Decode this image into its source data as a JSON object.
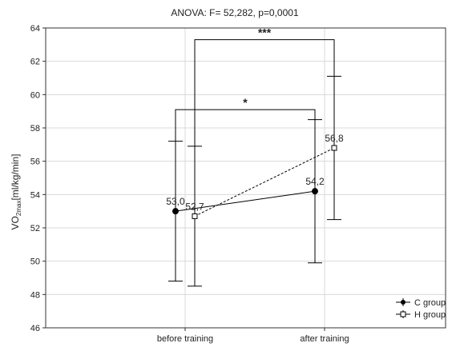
{
  "chart_data": {
    "type": "line",
    "title": "ANOVA: F= 52,282, p=0,0001",
    "ylabel_main": "VO",
    "ylabel_sub": "2max",
    "ylabel_rest": "[ml/kg/min]",
    "xlabel": "",
    "categories": [
      "before training",
      "after training"
    ],
    "ylim": [
      46,
      64
    ],
    "yticks": [
      46,
      48,
      50,
      52,
      54,
      56,
      58,
      60,
      62,
      64
    ],
    "grid": true,
    "legend_position": "bottom-right",
    "series": [
      {
        "name": "C group",
        "marker": "filled-circle",
        "line": "solid",
        "values": [
          53.0,
          54.2
        ],
        "value_labels": [
          "53,0",
          "54,2"
        ],
        "ci_low": [
          48.8,
          49.9
        ],
        "ci_high": [
          57.2,
          58.5
        ]
      },
      {
        "name": "H group",
        "marker": "open-square",
        "line": "dashed",
        "values": [
          52.7,
          56.8
        ],
        "value_labels": [
          "52,7",
          "56,8"
        ],
        "ci_low": [
          48.5,
          52.5
        ],
        "ci_high": [
          56.9,
          61.1
        ]
      }
    ],
    "significance": [
      {
        "label": "*",
        "series": "C group",
        "y": 59.1
      },
      {
        "label": "***",
        "series": "H group",
        "y": 63.3
      }
    ],
    "colors": {
      "line": "#000000",
      "grid": "#d9d9d9",
      "axis": "#333333"
    }
  }
}
